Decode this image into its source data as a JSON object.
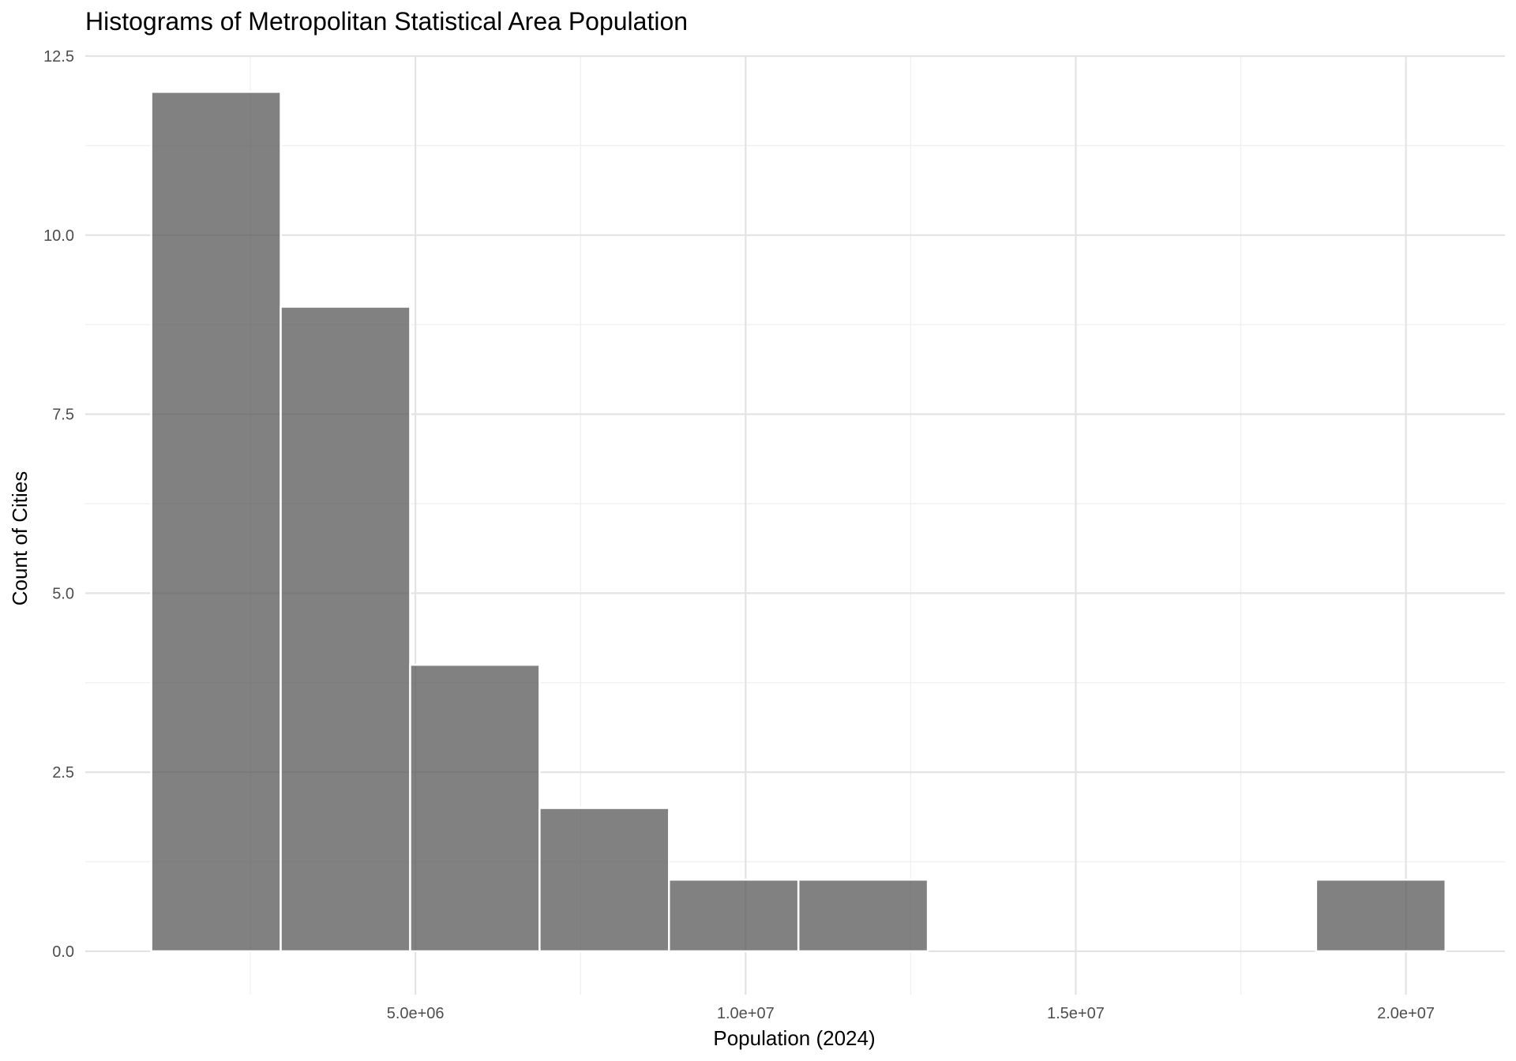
{
  "chart_data": {
    "type": "bar",
    "title": "Histograms of Metropolitan Statistical Area Population",
    "xlabel": "Population (2024)",
    "ylabel": "Count of Cities",
    "bins": [
      {
        "start": 1000000,
        "end": 2960000,
        "count": 12
      },
      {
        "start": 2960000,
        "end": 4920000,
        "count": 9
      },
      {
        "start": 4920000,
        "end": 6880000,
        "count": 4
      },
      {
        "start": 6880000,
        "end": 8840000,
        "count": 2
      },
      {
        "start": 8840000,
        "end": 10800000,
        "count": 1
      },
      {
        "start": 10800000,
        "end": 12760000,
        "count": 1
      },
      {
        "start": 18640000,
        "end": 20600000,
        "count": 1
      }
    ],
    "xlim": [
      0,
      21500000
    ],
    "ylim": [
      0,
      12.5
    ],
    "x_ticks": [
      {
        "value": 5000000,
        "label": "5.0e+06"
      },
      {
        "value": 10000000,
        "label": "1.0e+07"
      },
      {
        "value": 15000000,
        "label": "1.5e+07"
      },
      {
        "value": 20000000,
        "label": "2.0e+07"
      }
    ],
    "y_ticks": [
      {
        "value": 0,
        "label": "0.0"
      },
      {
        "value": 2.5,
        "label": "2.5"
      },
      {
        "value": 5,
        "label": "5.0"
      },
      {
        "value": 7.5,
        "label": "7.5"
      },
      {
        "value": 10,
        "label": "10.0"
      },
      {
        "value": 12.5,
        "label": "12.5"
      }
    ],
    "grid": true,
    "legend": "none",
    "bar_color": "#595959"
  }
}
